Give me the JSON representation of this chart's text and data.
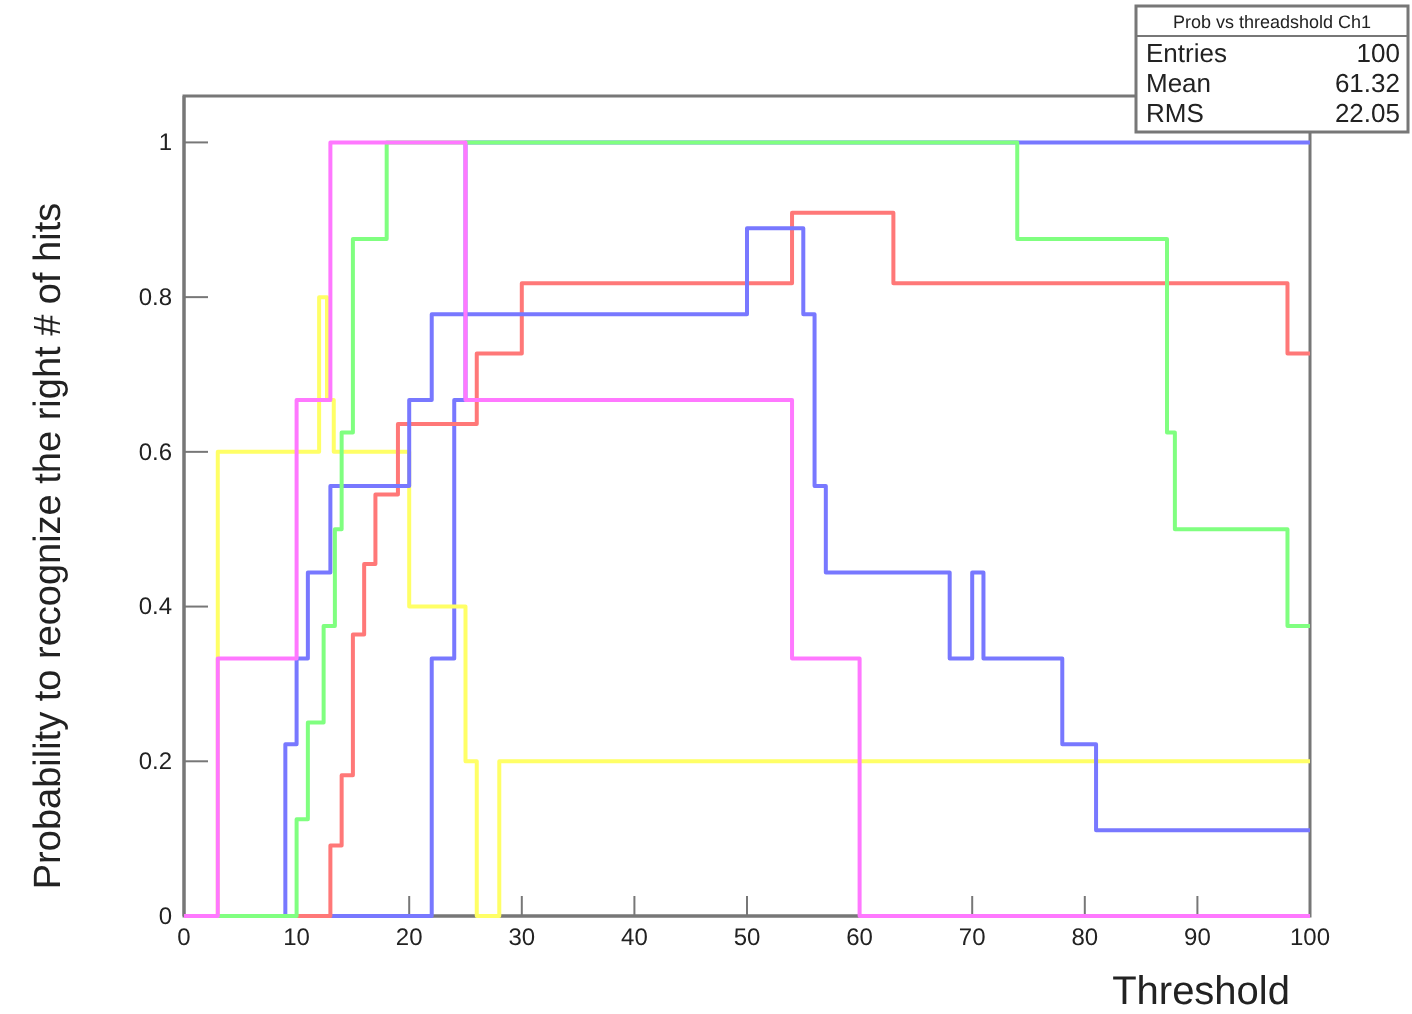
{
  "chart_data": {
    "type": "step",
    "xlabel": "Threshold",
    "ylabel": "Probability to recognize the right # of hits",
    "xlim": [
      0,
      100
    ],
    "ylim": [
      0,
      1.06
    ],
    "xticks": [
      0,
      10,
      20,
      30,
      40,
      50,
      60,
      70,
      80,
      90,
      100
    ],
    "yticks": [
      0,
      0.2,
      0.4,
      0.6,
      0.8,
      1
    ],
    "grid": false,
    "annotations": [
      "Prob vs threadshold Ch1",
      "Entries 100",
      "Mean 61.32",
      "RMS 22.05"
    ],
    "series": [
      {
        "color": "#7878ff",
        "x": [
          0,
          22,
          24,
          25,
          100
        ],
        "values": [
          0,
          0.333,
          0.667,
          1,
          1
        ]
      },
      {
        "color": "#ffff66",
        "x": [
          0,
          3,
          12,
          12.7,
          13.3,
          20,
          25,
          26,
          28,
          100
        ],
        "values": [
          0,
          0.6,
          0.8,
          0.667,
          0.6,
          0.4,
          0.2,
          0,
          0.2,
          0.2
        ]
      },
      {
        "color": "#ff7878",
        "x": [
          0,
          13,
          14,
          15,
          16,
          17,
          19,
          26,
          30,
          54,
          63,
          98,
          100
        ],
        "values": [
          0,
          0.091,
          0.182,
          0.364,
          0.455,
          0.545,
          0.636,
          0.727,
          0.818,
          0.909,
          0.818,
          0.727,
          0.727
        ]
      },
      {
        "color": "#7878ff",
        "x": [
          0,
          9,
          10,
          11,
          13,
          20,
          22,
          50,
          55,
          56,
          57,
          68,
          70,
          71,
          78,
          81,
          100
        ],
        "values": [
          0,
          0.222,
          0.333,
          0.444,
          0.556,
          0.667,
          0.778,
          0.889,
          0.778,
          0.556,
          0.444,
          0.333,
          0.444,
          0.333,
          0.222,
          0.111,
          0.111
        ]
      },
      {
        "color": "#80ff80",
        "x": [
          0,
          10,
          11,
          12.4,
          13.4,
          14,
          15,
          18,
          74,
          87.3,
          88,
          98,
          100
        ],
        "values": [
          0,
          0.125,
          0.25,
          0.375,
          0.5,
          0.625,
          0.875,
          1,
          0.875,
          0.625,
          0.5,
          0.375,
          0.375
        ]
      },
      {
        "color": "#ff78ff",
        "x": [
          0,
          3,
          10,
          13,
          25,
          54,
          60,
          100
        ],
        "values": [
          0,
          0.333,
          0.667,
          1,
          0.667,
          0.333,
          0,
          0
        ]
      }
    ]
  }
}
